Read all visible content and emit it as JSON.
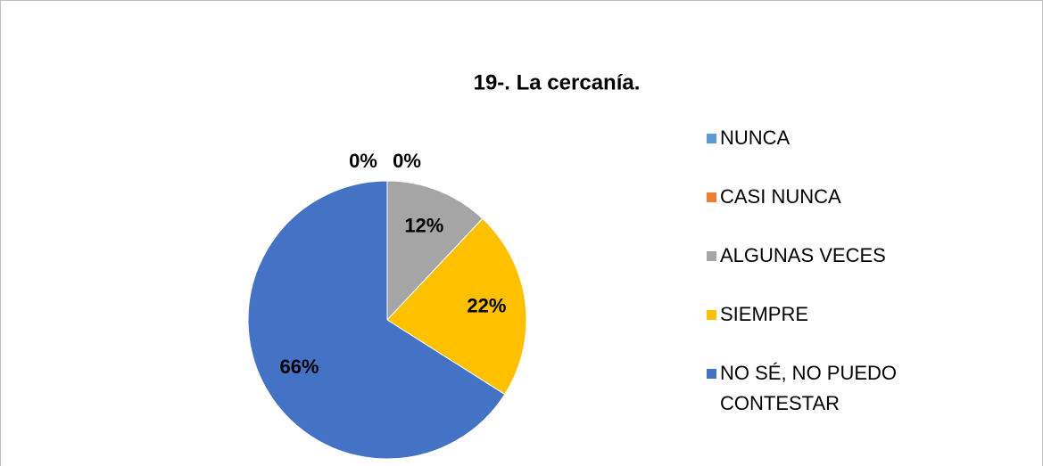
{
  "chart_data": {
    "type": "pie",
    "title": "19-. La cercanía.",
    "categories": [
      "NUNCA",
      "CASI NUNCA",
      "ALGUNAS VECES",
      "SIEMPRE",
      "NO SÉ, NO PUEDO CONTESTAR"
    ],
    "values": [
      0,
      0,
      12,
      22,
      66
    ],
    "value_labels": [
      "0%",
      "0%",
      "12%",
      "22%",
      "66%"
    ],
    "colors": [
      "#5b9bd5",
      "#ed7d31",
      "#a5a5a5",
      "#ffc000",
      "#4472c4"
    ],
    "legend": "right"
  }
}
